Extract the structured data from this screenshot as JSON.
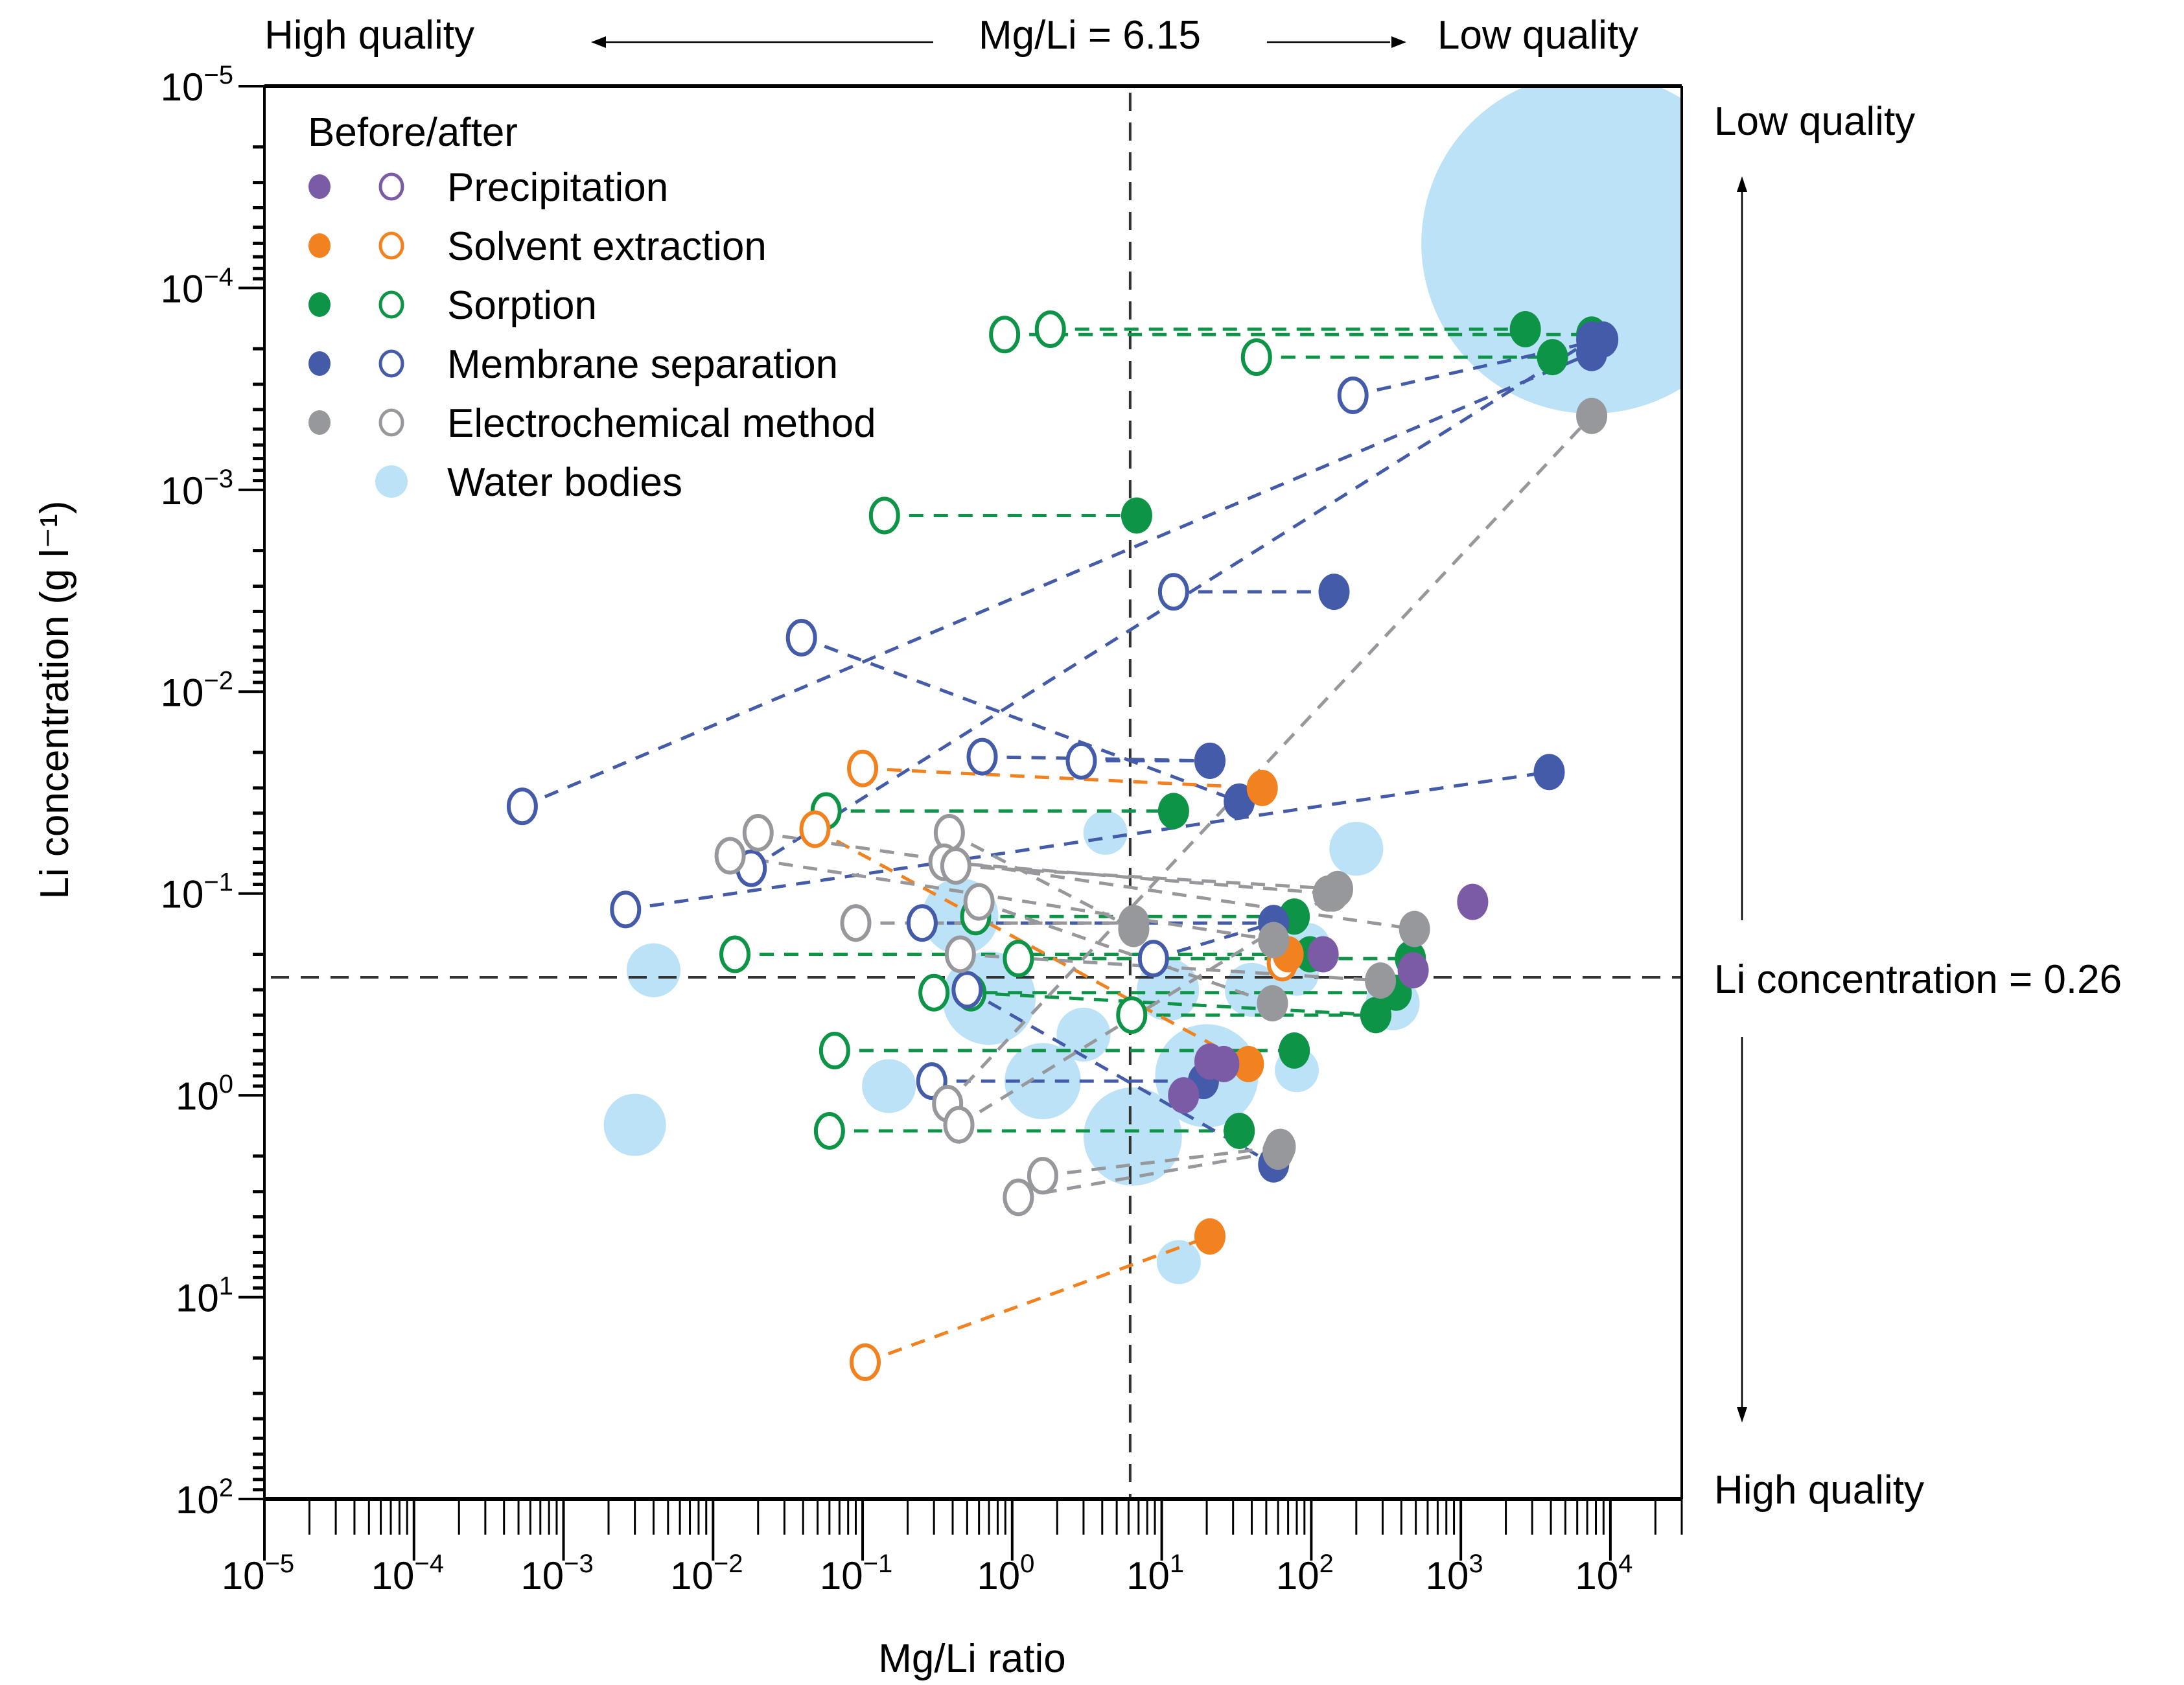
{
  "chart_data": {
    "type": "scatter",
    "xlabel": "Mg/Li ratio",
    "ylabel": "Li concentration (g l⁻¹)",
    "xscale": "log",
    "yscale": "log",
    "y_inverted": true,
    "xlim": [
      1e-05,
      30000.0
    ],
    "ylim": [
      1e-05,
      100.0
    ],
    "x_ticks": [
      {
        "value": 1e-05,
        "base": "10",
        "exp": "−5"
      },
      {
        "value": 0.0001,
        "base": "10",
        "exp": "−4"
      },
      {
        "value": 0.001,
        "base": "10",
        "exp": "−3"
      },
      {
        "value": 0.01,
        "base": "10",
        "exp": "−2"
      },
      {
        "value": 0.1,
        "base": "10",
        "exp": "−1"
      },
      {
        "value": 1,
        "base": "10",
        "exp": "0"
      },
      {
        "value": 10,
        "base": "10",
        "exp": "1"
      },
      {
        "value": 100,
        "base": "10",
        "exp": "2"
      },
      {
        "value": 1000,
        "base": "10",
        "exp": "3"
      },
      {
        "value": 10000,
        "base": "10",
        "exp": "4"
      }
    ],
    "y_ticks": [
      {
        "value": 1e-05,
        "base": "10",
        "exp": "−5"
      },
      {
        "value": 0.0001,
        "base": "10",
        "exp": "−4"
      },
      {
        "value": 0.001,
        "base": "10",
        "exp": "−3"
      },
      {
        "value": 0.01,
        "base": "10",
        "exp": "−2"
      },
      {
        "value": 0.1,
        "base": "10",
        "exp": "−1"
      },
      {
        "value": 1,
        "base": "10",
        "exp": "0"
      },
      {
        "value": 10,
        "base": "10",
        "exp": "1"
      },
      {
        "value": 100,
        "base": "10",
        "exp": "2"
      }
    ],
    "thresholds": {
      "mg_li": {
        "value": 6.15,
        "label": "Mg/Li = 6.15"
      },
      "li_conc": {
        "value": 0.26,
        "label": "Li concentration = 0.26"
      }
    },
    "annotations": {
      "top_left": "High quality",
      "top_right": "Low quality",
      "right_top": "Low quality",
      "right_bottom": "High quality"
    },
    "legend": {
      "title": "Before/after",
      "position": "top-left",
      "entries": [
        {
          "key": "precipitation",
          "label": "Precipitation",
          "color": "#7B5BA6"
        },
        {
          "key": "solvent",
          "label": "Solvent extraction",
          "color": "#F28120"
        },
        {
          "key": "sorption",
          "label": "Sorption",
          "color": "#0D9447"
        },
        {
          "key": "membrane",
          "label": "Membrane separation",
          "color": "#435BA8"
        },
        {
          "key": "electro",
          "label": "Electrochemical method",
          "color": "#97989C"
        },
        {
          "key": "water",
          "label": "Water bodies",
          "color": "#BBE2F7"
        }
      ]
    },
    "water_bodies": [
      {
        "x": 7500,
        "y": 6e-05,
        "size": 120
      },
      {
        "x": 0.004,
        "y": 0.24,
        "size": 3
      },
      {
        "x": 0.003,
        "y": 1.4,
        "size": 4
      },
      {
        "x": 0.15,
        "y": 0.9,
        "size": 3
      },
      {
        "x": 0.45,
        "y": 0.13,
        "size": 6
      },
      {
        "x": 0.7,
        "y": 0.33,
        "size": 9
      },
      {
        "x": 1.6,
        "y": 0.85,
        "size": 6
      },
      {
        "x": 4.2,
        "y": 0.05,
        "size": 2
      },
      {
        "x": 3.0,
        "y": 0.5,
        "size": 3
      },
      {
        "x": 6.4,
        "y": 1.6,
        "size": 10
      },
      {
        "x": 20,
        "y": 0.8,
        "size": 11
      },
      {
        "x": 11,
        "y": 0.3,
        "size": 4
      },
      {
        "x": 40,
        "y": 0.3,
        "size": 3
      },
      {
        "x": 80,
        "y": 0.25,
        "size": 2
      },
      {
        "x": 200,
        "y": 0.06,
        "size": 3
      },
      {
        "x": 80,
        "y": 0.75,
        "size": 2
      },
      {
        "x": 350,
        "y": 0.35,
        "size": 3
      },
      {
        "x": 13,
        "y": 6.7,
        "size": 2
      },
      {
        "x": 95,
        "y": 0.18,
        "size": 2
      }
    ],
    "series": [
      {
        "method": "sorption",
        "pairs": [
          {
            "before": [
              1.8,
              0.00016
            ],
            "after": [
              2700,
              0.00016
            ]
          },
          {
            "before": [
              0.89,
              0.00017
            ],
            "after": [
              7500,
              0.00017
            ]
          },
          {
            "before": [
              43,
              0.00022
            ],
            "after": [
              4100,
              0.00022
            ]
          },
          {
            "before": [
              0.14,
              0.00134
            ],
            "after": [
              6.8,
              0.00134
            ]
          },
          {
            "before": [
              0.057,
              0.039
            ],
            "after": [
              12,
              0.039
            ]
          },
          {
            "before": [
              0.57,
              0.13
            ],
            "after": [
              77,
              0.13
            ]
          },
          {
            "before": [
              0.014,
              0.2
            ],
            "after": [
              98,
              0.2
            ]
          },
          {
            "before": [
              1.1,
              0.21
            ],
            "after": [
              460,
              0.21
            ]
          },
          {
            "before": [
              0.3,
              0.31
            ],
            "after": [
              370,
              0.31
            ]
          },
          {
            "before": [
              0.53,
              0.31
            ],
            "after": [
              270,
              0.4
            ]
          },
          {
            "before": [
              6.3,
              0.4
            ],
            "after": [
              270,
              0.4
            ]
          },
          {
            "before": [
              0.065,
              0.6
            ],
            "after": [
              77,
              0.6
            ]
          },
          {
            "before": [
              0.06,
              1.5
            ],
            "after": [
              33,
              1.5
            ]
          }
        ]
      },
      {
        "method": "membrane",
        "pairs": [
          {
            "before": [
              0.00053,
              0.037
            ],
            "after": [
              7500,
              0.00021
            ]
          },
          {
            "before": [
              0.018,
              0.075
            ],
            "after": [
              7500,
              0.00018
            ]
          },
          {
            "before": [
              190,
              0.00034
            ],
            "after": [
              8900,
              0.00018
            ]
          },
          {
            "before": [
              12,
              0.0032
            ],
            "after": [
              142,
              0.0032
            ]
          },
          {
            "before": [
              0.039,
              0.0054
            ],
            "after": [
              33,
              0.035
            ]
          },
          {
            "before": [
              0.63,
              0.021
            ],
            "after": [
              21,
              0.022
            ]
          },
          {
            "before": [
              2.9,
              0.022
            ],
            "after": [
              21,
              0.022
            ]
          },
          {
            "before": [
              0.0026,
              0.12
            ],
            "after": [
              3900,
              0.025
            ]
          },
          {
            "before": [
              0.25,
              0.14
            ],
            "after": [
              56,
              0.14
            ]
          },
          {
            "before": [
              8.8,
              0.21
            ],
            "after": [
              56,
              0.14
            ]
          },
          {
            "before": [
              0.29,
              0.85
            ],
            "after": [
              19,
              0.85
            ]
          },
          {
            "before": [
              0.5,
              0.3
            ],
            "after": [
              56,
              2.2
            ]
          }
        ]
      },
      {
        "method": "solvent",
        "pairs": [
          {
            "before": [
              0.1,
              0.024
            ],
            "after": [
              47,
              0.03
            ]
          },
          {
            "before": [
              0.048,
              0.048
            ],
            "after": [
              38,
              0.7
            ]
          },
          {
            "before": [
              64,
              0.22
            ],
            "after": [
              70,
              0.2
            ]
          },
          {
            "before": [
              0.104,
              21
            ],
            "after": [
              21,
              5.0
            ]
          }
        ]
      },
      {
        "method": "precipitation",
        "pairs": [
          {
            "before": null,
            "after": [
              1200,
              0.11
            ]
          },
          {
            "before": null,
            "after": [
              120,
              0.2
            ]
          },
          {
            "before": null,
            "after": [
              480,
              0.24
            ]
          },
          {
            "before": null,
            "after": [
              21,
              0.68
            ]
          },
          {
            "before": null,
            "after": [
              26,
              0.7
            ]
          },
          {
            "before": null,
            "after": [
              14,
              1.0
            ]
          }
        ]
      },
      {
        "method": "electro",
        "pairs": [
          {
            "before": [
              0.02,
              0.05
            ],
            "after": [
              490,
              0.15
            ]
          },
          {
            "before": [
              0.013,
              0.065
            ],
            "after": [
              56,
              0.17
            ]
          },
          {
            "before": [
              0.38,
              0.05
            ],
            "after": [
              6.5,
              0.15
            ]
          },
          {
            "before": [
              0.35,
              0.07
            ],
            "after": [
              130,
              0.1
            ]
          },
          {
            "before": [
              0.42,
              0.073
            ],
            "after": [
              150,
              0.095
            ]
          },
          {
            "before": [
              0.6,
              0.11
            ],
            "after": [
              55,
              0.35
            ]
          },
          {
            "before": [
              0.09,
              0.14
            ],
            "after": [
              6.5,
              0.14
            ]
          },
          {
            "before": [
              0.45,
              0.2
            ],
            "after": [
              290,
              0.27
            ]
          },
          {
            "before": [
              0.37,
              1.1
            ],
            "after": [
              7500,
              0.00043
            ]
          },
          {
            "before": [
              0.44,
              1.4
            ],
            "after": [
              140,
              0.1
            ]
          },
          {
            "before": [
              1.6,
              2.5
            ],
            "after": [
              62,
              1.8
            ]
          },
          {
            "before": [
              1.1,
              3.2
            ],
            "after": [
              60,
              1.9
            ]
          }
        ]
      }
    ]
  }
}
